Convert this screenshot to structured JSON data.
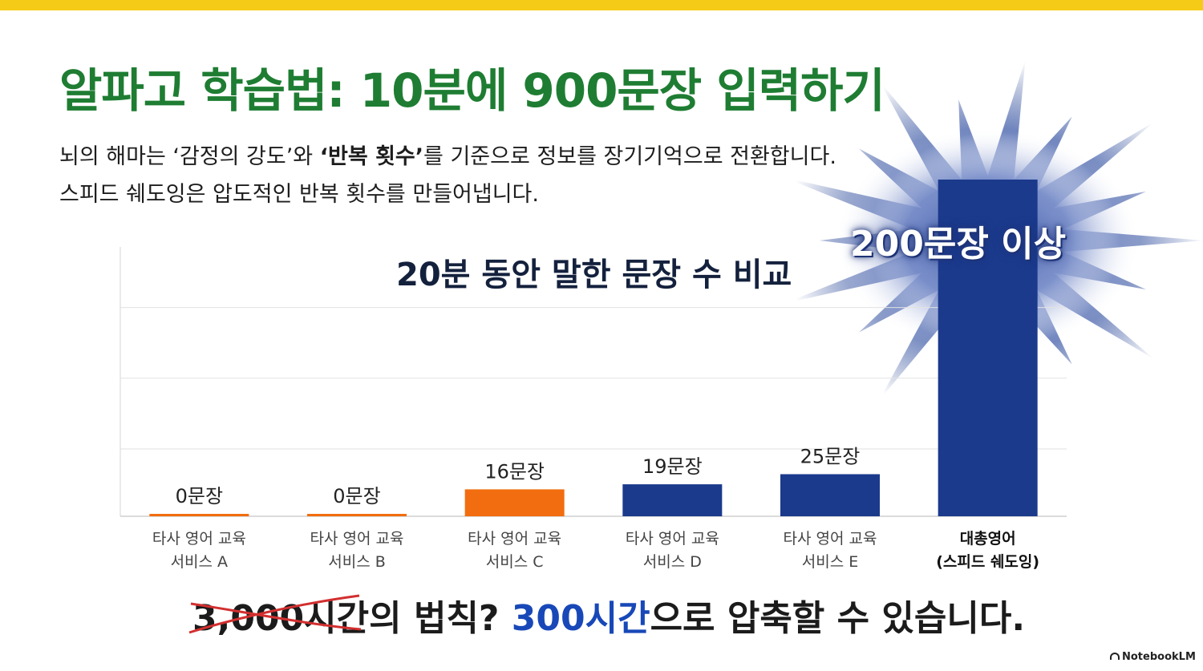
{
  "title": "알파고 학습법: 10분에 900문장 입력하기",
  "subtitle": {
    "line1_a": "뇌의 해마는 ‘감정의 강도’와 ",
    "line1_bold": "‘반복 횟수’",
    "line1_b": "를 기준으로 정보를 장기기억으로 전환합니다.",
    "line2": "스피드 쉐도잉은 압도적인 반복 횟수를 만들어냅니다."
  },
  "callout": "200문장 이상",
  "bottom": {
    "struck": "3,000시간",
    "part1": "의 법칙? ",
    "highlight": "300시간",
    "part2": "으로 압축할 수 있습니다."
  },
  "brand": "NotebookLM",
  "colors": {
    "title_green": "#1e7d32",
    "orange": "#f26d0f",
    "navy": "#1b3a8c",
    "accent_yellow": "#f6cb18",
    "strike_red": "#d32f2f"
  },
  "chart_data": {
    "type": "bar",
    "title": "20분 동안 말한 문장 수 비교",
    "categories": [
      [
        "타사 영어 교육",
        "서비스 A"
      ],
      [
        "타사 영어 교육",
        "서비스 B"
      ],
      [
        "타사 영어 교육",
        "서비스 C"
      ],
      [
        "타사 영어 교육",
        "서비스 D"
      ],
      [
        "타사 영어 교육",
        "서비스 E"
      ],
      [
        "대총영어",
        "(스피드 쉐도잉)"
      ]
    ],
    "values": [
      0,
      0,
      16,
      19,
      25,
      200
    ],
    "data_labels": [
      "0문장",
      "0문장",
      "16문장",
      "19문장",
      "25문장",
      ""
    ],
    "bar_colors": [
      "#f26d0f",
      "#f26d0f",
      "#f26d0f",
      "#1b3a8c",
      "#1b3a8c",
      "#1b3a8c"
    ],
    "highlight_category_index": 5,
    "ylim": [
      0,
      240
    ],
    "grid": true
  }
}
